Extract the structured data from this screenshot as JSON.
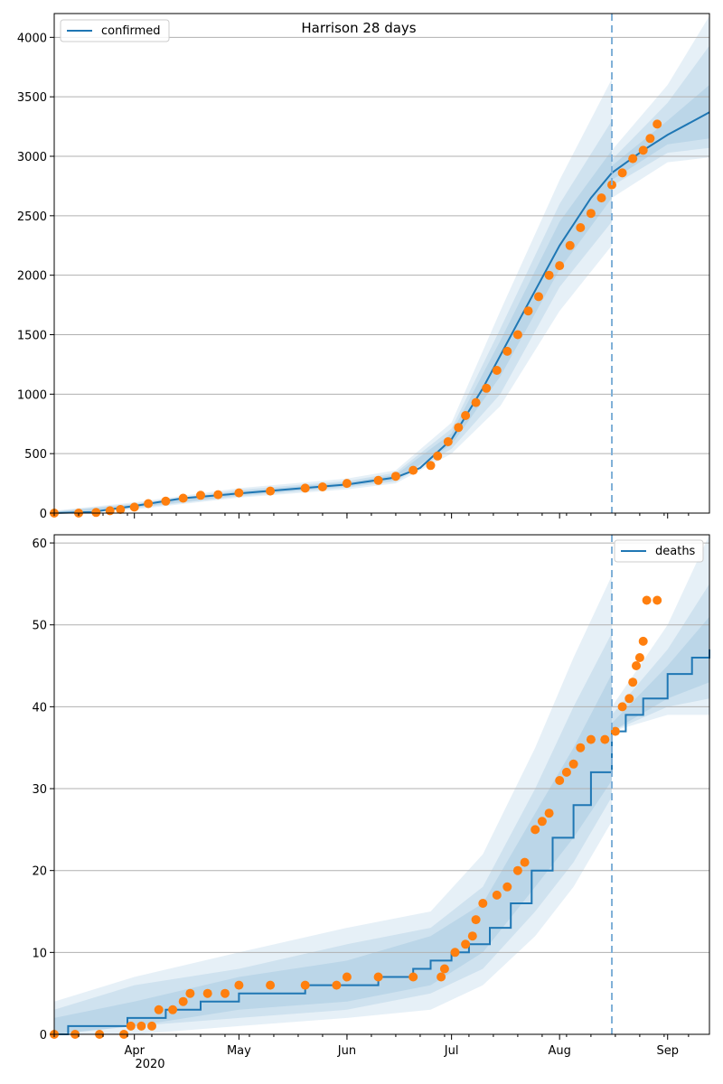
{
  "figure": {
    "title": "Harrison 28 days",
    "x_tick_labels": [
      "Apr",
      "May",
      "Jun",
      "Jul",
      "Aug",
      "Sep"
    ],
    "x_year_label": "2020"
  },
  "chart_data": [
    {
      "type": "line",
      "title": "Harrison 28 days",
      "xlabel": "",
      "ylabel": "",
      "x_range": [
        "2020-03-09",
        "2020-09-13"
      ],
      "ylim": [
        0,
        4200
      ],
      "y_ticks": [
        0,
        500,
        1000,
        1500,
        2000,
        2500,
        3000,
        3500,
        4000
      ],
      "x_ticks": [
        {
          "date": "2020-04-01",
          "label": "Apr"
        },
        {
          "date": "2020-05-01",
          "label": "May"
        },
        {
          "date": "2020-06-01",
          "label": "Jun"
        },
        {
          "date": "2020-07-01",
          "label": "Jul"
        },
        {
          "date": "2020-08-01",
          "label": "Aug"
        },
        {
          "date": "2020-09-01",
          "label": "Sep"
        }
      ],
      "grid": "horizontal",
      "legend": {
        "position": "top-left",
        "entries": [
          "confirmed"
        ]
      },
      "forecast_start": "2020-08-16",
      "model_line": {
        "name": "confirmed",
        "points": [
          [
            "2020-03-09",
            0
          ],
          [
            "2020-03-20",
            10
          ],
          [
            "2020-04-01",
            60
          ],
          [
            "2020-04-15",
            125
          ],
          [
            "2020-05-01",
            165
          ],
          [
            "2020-05-15",
            200
          ],
          [
            "2020-06-01",
            240
          ],
          [
            "2020-06-15",
            300
          ],
          [
            "2020-06-22",
            380
          ],
          [
            "2020-07-01",
            620
          ],
          [
            "2020-07-10",
            1050
          ],
          [
            "2020-07-20",
            1600
          ],
          [
            "2020-08-01",
            2250
          ],
          [
            "2020-08-10",
            2650
          ],
          [
            "2020-08-16",
            2860
          ],
          [
            "2020-08-25",
            3050
          ],
          [
            "2020-09-01",
            3180
          ],
          [
            "2020-09-13",
            3370
          ]
        ]
      },
      "bands": [
        {
          "level": "outer",
          "points": [
            [
              "2020-03-09",
              0,
              20
            ],
            [
              "2020-04-01",
              30,
              90
            ],
            [
              "2020-05-01",
              130,
              210
            ],
            [
              "2020-06-01",
              200,
              290
            ],
            [
              "2020-06-15",
              250,
              360
            ],
            [
              "2020-07-01",
              500,
              760
            ],
            [
              "2020-07-15",
              900,
              1700
            ],
            [
              "2020-08-01",
              1700,
              2800
            ],
            [
              "2020-08-16",
              2250,
              3650
            ],
            [
              "2020-08-16",
              2650,
              3050
            ],
            [
              "2020-09-01",
              2950,
              3600
            ],
            [
              "2020-09-13",
              2990,
              4180
            ]
          ]
        },
        {
          "level": "middle",
          "points": [
            [
              "2020-03-09",
              0,
              15
            ],
            [
              "2020-04-01",
              40,
              80
            ],
            [
              "2020-05-01",
              140,
              195
            ],
            [
              "2020-06-01",
              215,
              270
            ],
            [
              "2020-06-15",
              265,
              340
            ],
            [
              "2020-07-01",
              540,
              710
            ],
            [
              "2020-07-15",
              1000,
              1550
            ],
            [
              "2020-08-01",
              1900,
              2600
            ],
            [
              "2020-08-16",
              2450,
              3300
            ],
            [
              "2020-08-16",
              2750,
              2970
            ],
            [
              "2020-09-01",
              3030,
              3450
            ],
            [
              "2020-09-13",
              3070,
              3930
            ]
          ]
        },
        {
          "level": "inner",
          "points": [
            [
              "2020-03-09",
              0,
              10
            ],
            [
              "2020-04-01",
              48,
              72
            ],
            [
              "2020-05-01",
              150,
              182
            ],
            [
              "2020-06-01",
              225,
              258
            ],
            [
              "2020-06-15",
              278,
              322
            ],
            [
              "2020-07-01",
              575,
              670
            ],
            [
              "2020-07-15",
              1150,
              1450
            ],
            [
              "2020-08-01",
              2050,
              2450
            ],
            [
              "2020-08-16",
              2650,
              3050
            ],
            [
              "2020-08-16",
              2800,
              2920
            ],
            [
              "2020-09-01",
              3100,
              3300
            ],
            [
              "2020-09-13",
              3150,
              3600
            ]
          ]
        }
      ],
      "observed": {
        "name": "observed",
        "points": [
          [
            "2020-03-09",
            0
          ],
          [
            "2020-03-16",
            0
          ],
          [
            "2020-03-21",
            5
          ],
          [
            "2020-03-25",
            20
          ],
          [
            "2020-03-28",
            30
          ],
          [
            "2020-04-01",
            50
          ],
          [
            "2020-04-05",
            80
          ],
          [
            "2020-04-10",
            100
          ],
          [
            "2020-04-15",
            125
          ],
          [
            "2020-04-20",
            150
          ],
          [
            "2020-04-25",
            155
          ],
          [
            "2020-05-01",
            170
          ],
          [
            "2020-05-10",
            185
          ],
          [
            "2020-05-20",
            210
          ],
          [
            "2020-05-25",
            220
          ],
          [
            "2020-06-01",
            250
          ],
          [
            "2020-06-10",
            275
          ],
          [
            "2020-06-15",
            310
          ],
          [
            "2020-06-20",
            360
          ],
          [
            "2020-06-25",
            400
          ],
          [
            "2020-06-27",
            480
          ],
          [
            "2020-06-30",
            600
          ],
          [
            "2020-07-03",
            720
          ],
          [
            "2020-07-05",
            820
          ],
          [
            "2020-07-08",
            930
          ],
          [
            "2020-07-11",
            1050
          ],
          [
            "2020-07-14",
            1200
          ],
          [
            "2020-07-17",
            1360
          ],
          [
            "2020-07-20",
            1500
          ],
          [
            "2020-07-23",
            1700
          ],
          [
            "2020-07-26",
            1820
          ],
          [
            "2020-07-29",
            2000
          ],
          [
            "2020-08-01",
            2080
          ],
          [
            "2020-08-04",
            2250
          ],
          [
            "2020-08-07",
            2400
          ],
          [
            "2020-08-10",
            2520
          ],
          [
            "2020-08-13",
            2650
          ],
          [
            "2020-08-16",
            2760
          ],
          [
            "2020-08-19",
            2860
          ],
          [
            "2020-08-22",
            2980
          ],
          [
            "2020-08-25",
            3050
          ],
          [
            "2020-08-27",
            3150
          ],
          [
            "2020-08-29",
            3270
          ]
        ]
      },
      "colors": {
        "line": "#1f77b4",
        "band": "#1f77b4",
        "observed": "#ff7f0e",
        "grid": "#b0b0b0",
        "forecast_line": "#7fb0d8"
      }
    },
    {
      "type": "line",
      "title": "",
      "xlabel": "",
      "ylabel": "",
      "x_range": [
        "2020-03-09",
        "2020-09-13"
      ],
      "ylim": [
        0,
        61
      ],
      "y_ticks": [
        0,
        10,
        20,
        30,
        40,
        50,
        60
      ],
      "x_ticks": [
        {
          "date": "2020-04-01",
          "label": "Apr"
        },
        {
          "date": "2020-05-01",
          "label": "May"
        },
        {
          "date": "2020-06-01",
          "label": "Jun"
        },
        {
          "date": "2020-07-01",
          "label": "Jul"
        },
        {
          "date": "2020-08-01",
          "label": "Aug"
        },
        {
          "date": "2020-09-01",
          "label": "Sep"
        }
      ],
      "grid": "horizontal",
      "legend": {
        "position": "top-right",
        "entries": [
          "deaths"
        ]
      },
      "forecast_start": "2020-08-16",
      "model_line": {
        "name": "deaths",
        "step": true,
        "points": [
          [
            "2020-03-09",
            0
          ],
          [
            "2020-03-13",
            1
          ],
          [
            "2020-03-30",
            2
          ],
          [
            "2020-04-10",
            3
          ],
          [
            "2020-04-20",
            4
          ],
          [
            "2020-05-01",
            5
          ],
          [
            "2020-05-20",
            6
          ],
          [
            "2020-06-01",
            6
          ],
          [
            "2020-06-10",
            7
          ],
          [
            "2020-06-20",
            8
          ],
          [
            "2020-06-25",
            9
          ],
          [
            "2020-07-01",
            10
          ],
          [
            "2020-07-06",
            11
          ],
          [
            "2020-07-12",
            13
          ],
          [
            "2020-07-18",
            16
          ],
          [
            "2020-07-24",
            20
          ],
          [
            "2020-07-30",
            24
          ],
          [
            "2020-08-05",
            28
          ],
          [
            "2020-08-10",
            32
          ],
          [
            "2020-08-16",
            37
          ],
          [
            "2020-08-20",
            39
          ],
          [
            "2020-08-25",
            41
          ],
          [
            "2020-09-01",
            44
          ],
          [
            "2020-09-08",
            46
          ],
          [
            "2020-09-13",
            47
          ]
        ]
      },
      "bands": [
        {
          "level": "outer",
          "points": [
            [
              "2020-03-09",
              0,
              4
            ],
            [
              "2020-04-01",
              0,
              7
            ],
            [
              "2020-05-01",
              1,
              10
            ],
            [
              "2020-06-01",
              2,
              13
            ],
            [
              "2020-06-25",
              3,
              15
            ],
            [
              "2020-07-10",
              6,
              22
            ],
            [
              "2020-07-25",
              12,
              35
            ],
            [
              "2020-08-05",
              18,
              46
            ],
            [
              "2020-08-16",
              26,
              56
            ],
            [
              "2020-08-16",
              37,
              40
            ],
            [
              "2020-09-01",
              39,
              50
            ],
            [
              "2020-09-13",
              39,
              61
            ]
          ]
        },
        {
          "level": "middle",
          "points": [
            [
              "2020-03-09",
              0,
              3
            ],
            [
              "2020-04-01",
              1,
              6
            ],
            [
              "2020-05-01",
              2,
              8
            ],
            [
              "2020-06-01",
              3,
              11
            ],
            [
              "2020-06-25",
              5,
              13
            ],
            [
              "2020-07-10",
              8,
              18
            ],
            [
              "2020-07-25",
              15,
              30
            ],
            [
              "2020-08-05",
              21,
              40
            ],
            [
              "2020-08-16",
              29,
              49
            ],
            [
              "2020-08-16",
              37,
              39
            ],
            [
              "2020-09-01",
              40,
              47
            ],
            [
              "2020-09-13",
              41,
              55
            ]
          ]
        },
        {
          "level": "inner",
          "points": [
            [
              "2020-03-09",
              0,
              2
            ],
            [
              "2020-04-01",
              1,
              4
            ],
            [
              "2020-05-01",
              3,
              7
            ],
            [
              "2020-06-01",
              4,
              9
            ],
            [
              "2020-06-25",
              6,
              12
            ],
            [
              "2020-07-10",
              10,
              16
            ],
            [
              "2020-07-25",
              18,
              27
            ],
            [
              "2020-08-05",
              24,
              35
            ],
            [
              "2020-08-16",
              31,
              44
            ],
            [
              "2020-08-16",
              37,
              38
            ],
            [
              "2020-09-01",
              41,
              45
            ],
            [
              "2020-09-13",
              43,
              51
            ]
          ]
        }
      ],
      "observed": {
        "name": "observed",
        "points": [
          [
            "2020-03-09",
            0
          ],
          [
            "2020-03-15",
            0
          ],
          [
            "2020-03-22",
            0
          ],
          [
            "2020-03-29",
            0
          ],
          [
            "2020-03-31",
            1
          ],
          [
            "2020-04-03",
            1
          ],
          [
            "2020-04-06",
            1
          ],
          [
            "2020-04-08",
            3
          ],
          [
            "2020-04-12",
            3
          ],
          [
            "2020-04-15",
            4
          ],
          [
            "2020-04-17",
            5
          ],
          [
            "2020-04-22",
            5
          ],
          [
            "2020-04-27",
            5
          ],
          [
            "2020-05-01",
            6
          ],
          [
            "2020-05-10",
            6
          ],
          [
            "2020-05-20",
            6
          ],
          [
            "2020-05-29",
            6
          ],
          [
            "2020-06-01",
            7
          ],
          [
            "2020-06-10",
            7
          ],
          [
            "2020-06-20",
            7
          ],
          [
            "2020-06-28",
            7
          ],
          [
            "2020-06-29",
            8
          ],
          [
            "2020-07-02",
            10
          ],
          [
            "2020-07-05",
            11
          ],
          [
            "2020-07-07",
            12
          ],
          [
            "2020-07-08",
            14
          ],
          [
            "2020-07-10",
            16
          ],
          [
            "2020-07-14",
            17
          ],
          [
            "2020-07-17",
            18
          ],
          [
            "2020-07-20",
            20
          ],
          [
            "2020-07-22",
            21
          ],
          [
            "2020-07-25",
            25
          ],
          [
            "2020-07-27",
            26
          ],
          [
            "2020-07-29",
            27
          ],
          [
            "2020-08-01",
            31
          ],
          [
            "2020-08-03",
            32
          ],
          [
            "2020-08-05",
            33
          ],
          [
            "2020-08-07",
            35
          ],
          [
            "2020-08-10",
            36
          ],
          [
            "2020-08-14",
            36
          ],
          [
            "2020-08-17",
            37
          ],
          [
            "2020-08-19",
            40
          ],
          [
            "2020-08-21",
            41
          ],
          [
            "2020-08-22",
            43
          ],
          [
            "2020-08-23",
            45
          ],
          [
            "2020-08-24",
            46
          ],
          [
            "2020-08-25",
            48
          ],
          [
            "2020-08-26",
            53
          ],
          [
            "2020-08-29",
            53
          ]
        ]
      },
      "colors": {
        "line": "#1f77b4",
        "band": "#1f77b4",
        "observed": "#ff7f0e",
        "grid": "#b0b0b0",
        "forecast_line": "#7fb0d8"
      }
    }
  ]
}
